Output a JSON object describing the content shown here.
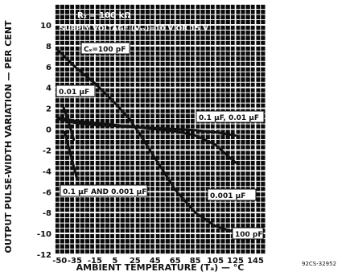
{
  "chart_data": {
    "type": "line",
    "xlabel": "AMBIENT TEMPERATURE (Tₐ) — °C",
    "ylabel": "OUTPUT PULSE-WIDTH VARIATION — PER CENT",
    "x_ticks": [
      "-50",
      "-35",
      "-15",
      "5",
      "25",
      "45",
      "65",
      "85",
      "105",
      "125",
      "145"
    ],
    "y_ticks": [
      "10",
      "8",
      "6",
      "4",
      "2",
      "0",
      "-2",
      "-4",
      "-6",
      "-8",
      "-10",
      "-12"
    ],
    "xlim": [
      -55,
      155
    ],
    "ylim": [
      -12,
      12
    ],
    "grid": true,
    "background": "#0b0b0b",
    "conditions": [
      "Rₓ = 100 kΩ",
      "SUPPLY VOLTAGE (Vₓₓ)=10 V OR 15 V"
    ],
    "series": [
      {
        "name": "Cₓ=100 pF",
        "x": [
          -52,
          -35,
          -15,
          5,
          20,
          30,
          45,
          65,
          85,
          105,
          125
        ],
        "y": [
          7.6,
          6.0,
          4.4,
          2.5,
          0.9,
          -0.5,
          -2.8,
          -5.8,
          -8.0,
          -9.3,
          -9.9
        ]
      },
      {
        "name": "0.1 µF, 0.01 µF",
        "x": [
          -52,
          -35,
          -15,
          5,
          25,
          45,
          65,
          85,
          105,
          125
        ],
        "y": [
          1.0,
          0.6,
          0.4,
          0.3,
          0.2,
          0.1,
          0.0,
          -0.1,
          -0.3,
          -0.6
        ]
      },
      {
        "name": "0.001 µF",
        "x": [
          -52,
          -35,
          -15,
          5,
          25,
          45,
          65,
          85,
          105,
          125
        ],
        "y": [
          1.1,
          0.8,
          0.6,
          0.4,
          0.2,
          0.0,
          -0.2,
          -0.6,
          -1.5,
          -3.2
        ]
      },
      {
        "name": "0.01 µF",
        "x": [
          -47,
          -44,
          -41,
          -38,
          -36
        ],
        "y": [
          2.3,
          1.5,
          0.6,
          -0.3,
          -1.0
        ]
      },
      {
        "name": "0.1 µF AND 0.001 µF",
        "x": [
          -45,
          -42,
          -39,
          -36,
          -33
        ],
        "y": [
          -0.3,
          -1.4,
          -2.5,
          -3.6,
          -4.7
        ]
      }
    ],
    "curve_labels": [
      "Cₓ=100 pF",
      "0.01 µF",
      "0.1 µF, 0.01 µF",
      "0.1 µF AND 0.001 µF",
      "0.001 µF",
      "100 pF"
    ],
    "figure_code": "92CS-32952"
  }
}
